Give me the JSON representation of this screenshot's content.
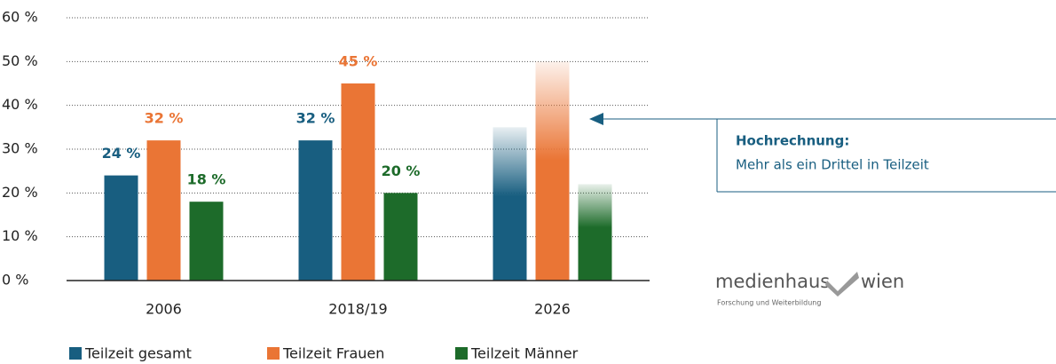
{
  "chart_data": {
    "type": "bar",
    "categories": [
      "2006",
      "2018/19",
      "2026"
    ],
    "series": [
      {
        "name": "Teilzeit gesamt",
        "color": "#185e80",
        "values": [
          24,
          32,
          35
        ],
        "value_labels": [
          "24 %",
          "32 %",
          null
        ]
      },
      {
        "name": "Teilzeit Frauen",
        "color": "#ea7535",
        "values": [
          32,
          45,
          50
        ],
        "value_labels": [
          "32 %",
          "45 %",
          null
        ]
      },
      {
        "name": "Teilzeit Männer",
        "color": "#1d6b2a",
        "values": [
          18,
          20,
          22
        ],
        "value_labels": [
          "18 %",
          "20 %",
          null
        ]
      }
    ],
    "projected_index": 2,
    "ylim": [
      0,
      60
    ],
    "yticks": [
      {
        "value": 0,
        "label": "0 %"
      },
      {
        "value": 10,
        "label": "10 %"
      },
      {
        "value": 20,
        "label": "20 %"
      },
      {
        "value": 30,
        "label": "30 %"
      },
      {
        "value": 40,
        "label": "40 %"
      },
      {
        "value": 50,
        "label": "50 %"
      },
      {
        "value": 60,
        "label": "60 %"
      }
    ],
    "grid": true,
    "legend": "bottom",
    "annotation": {
      "title": "Hochrechnung:",
      "text": "Mehr als ein Drittel in Teilzeit"
    },
    "logo": {
      "name_left": "medienhaus",
      "name_right": "wien",
      "tagline": "Forschung und Weiterbildung"
    }
  }
}
